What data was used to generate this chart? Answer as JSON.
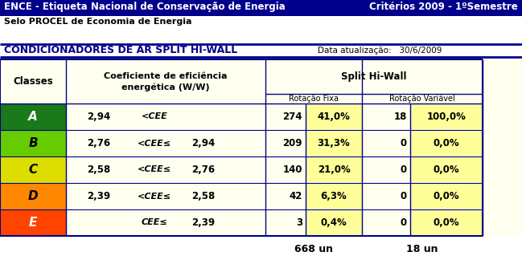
{
  "title_left": "ENCE - Etiqueta Nacional de Conservação de Energia",
  "title_right": "Critérios 2009 - 1ºSemestre",
  "subtitle": "Selo PROCEL de Economia de Energia",
  "section_title": "CONDICIONADORES DE AR SPLIT HI-WALL",
  "data_label": "Data atualização:   30/6/2009",
  "col_header1": "Classes",
  "col_header2_line1": "Coeficiente de eficiência",
  "col_header2_line2": "energética (W/W)",
  "col_header3": "Split Hi-Wall",
  "col_header3a": "Rotação Fixa",
  "col_header3b": "Rotação Variável",
  "rows": [
    {
      "class": "A",
      "cee_low": "2,94",
      "op": "<CEE",
      "cee_high": "",
      "rf_count": "274",
      "rf_pct": "41,0%",
      "rv_count": "18",
      "rv_pct": "100,0%",
      "class_color": "#1a7a1a"
    },
    {
      "class": "B",
      "cee_low": "2,76",
      "op": "<CEE≤",
      "cee_high": "2,94",
      "rf_count": "209",
      "rf_pct": "31,3%",
      "rv_count": "0",
      "rv_pct": "0,0%",
      "class_color": "#66cc00"
    },
    {
      "class": "C",
      "cee_low": "2,58",
      "op": "<CEE≤",
      "cee_high": "2,76",
      "rf_count": "140",
      "rf_pct": "21,0%",
      "rv_count": "0",
      "rv_pct": "0,0%",
      "class_color": "#dddd00"
    },
    {
      "class": "D",
      "cee_low": "2,39",
      "op": "<CEE≤",
      "cee_high": "2,58",
      "rf_count": "42",
      "rf_pct": "6,3%",
      "rv_count": "0",
      "rv_pct": "0,0%",
      "class_color": "#ff8800"
    },
    {
      "class": "E",
      "cee_low": "",
      "op": "CEE≤",
      "cee_high": "2,39",
      "rf_count": "3",
      "rf_pct": "0,4%",
      "rv_count": "0",
      "rv_pct": "0,0%",
      "class_color": "#ff4400"
    }
  ],
  "total_rf": "668 un",
  "total_rv": "18 un",
  "bg_yellow": "#fffff0",
  "pct_yellow": "#ffff99",
  "dark_blue": "#00008B",
  "fig_bg": "#ffffff"
}
